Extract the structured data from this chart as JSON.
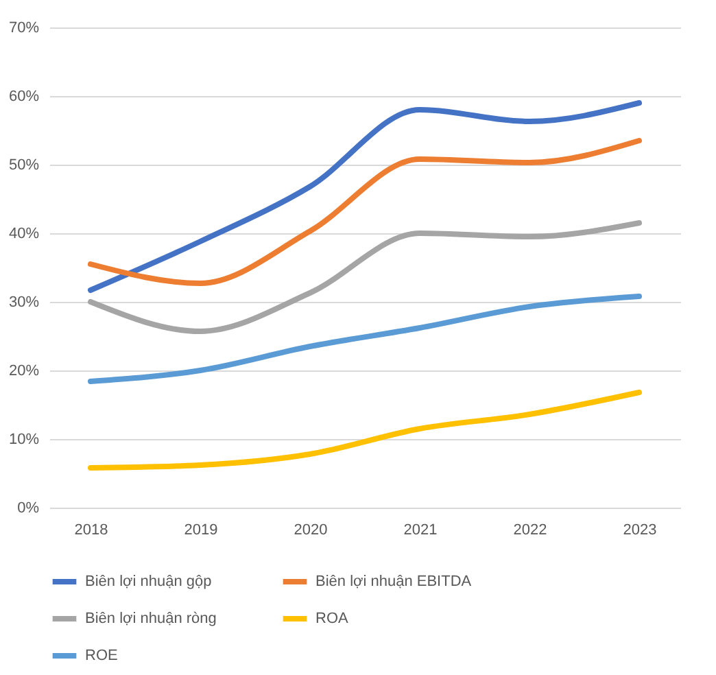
{
  "chart_data": {
    "type": "line",
    "categories": [
      "2018",
      "2019",
      "2020",
      "2021",
      "2022",
      "2023"
    ],
    "ylim": [
      0,
      70
    ],
    "yticks": [
      {
        "value": 0,
        "label": "0%"
      },
      {
        "value": 10,
        "label": "10%"
      },
      {
        "value": 20,
        "label": "20%"
      },
      {
        "value": 30,
        "label": "30%"
      },
      {
        "value": 40,
        "label": "40%"
      },
      {
        "value": 50,
        "label": "50%"
      },
      {
        "value": 60,
        "label": "60%"
      },
      {
        "value": 70,
        "label": "70%"
      }
    ],
    "grid": "y",
    "legend": "bottom",
    "marker": "none",
    "line_style": "solid",
    "series": [
      {
        "name": "Biên lợi nhuận gộp",
        "color": "#4472c4",
        "values": [
          31.7,
          38.8,
          46.8,
          58,
          56.3,
          59
        ]
      },
      {
        "name": "Biên lợi nhuận EBITDA",
        "color": "#ed7d31",
        "values": [
          35.5,
          32.7,
          40.3,
          50.8,
          50.3,
          53.5
        ]
      },
      {
        "name": "Biên lợi nhuận ròng",
        "color": "#a5a5a5",
        "values": [
          30,
          25.7,
          31.3,
          40,
          39.5,
          41.5
        ]
      },
      {
        "name": "ROA",
        "color": "#ffc000",
        "values": [
          5.8,
          6.2,
          7.8,
          11.5,
          13.6,
          16.8
        ]
      },
      {
        "name": "ROE",
        "color": "#5b9bd5",
        "values": [
          18.4,
          20,
          23.5,
          26.2,
          29.3,
          30.8
        ]
      }
    ]
  }
}
